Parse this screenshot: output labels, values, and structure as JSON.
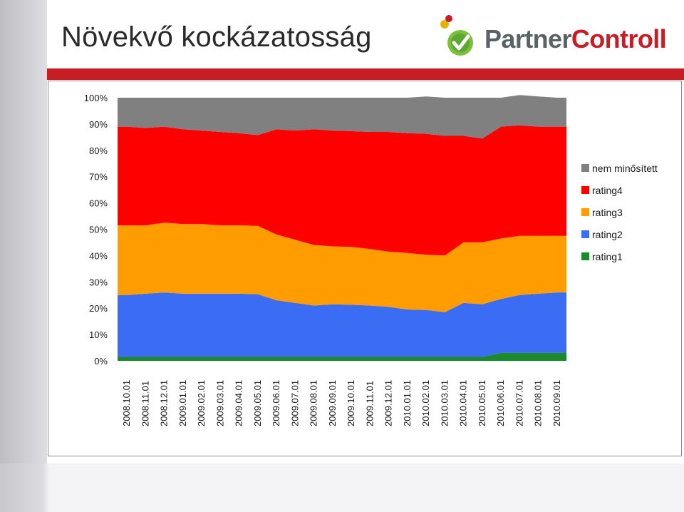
{
  "slide": {
    "title": "Növekvő kockázatosság",
    "logo": {
      "part1": "Partner",
      "part2": "Controll"
    }
  },
  "chart_data": {
    "type": "area",
    "stacked": true,
    "percent_scale": true,
    "ylim": [
      0,
      100
    ],
    "y_ticks": [
      "0%",
      "10%",
      "20%",
      "30%",
      "40%",
      "50%",
      "60%",
      "70%",
      "80%",
      "90%",
      "100%"
    ],
    "categories": [
      "2008.10.01",
      "2008.11.01",
      "2008.12.01",
      "2009.01.01",
      "2009.02.01",
      "2009.03.01",
      "2009.04.01",
      "2009.05.01",
      "2009.06.01",
      "2009.07.01",
      "2009.08.01",
      "2009.09.01",
      "2009.10.01",
      "2009.11.01",
      "2009.12.01",
      "2010.01.01",
      "2010.02.01",
      "2010.03.01",
      "2010.04.01",
      "2010.05.01",
      "2010.06.01",
      "2010.07.01",
      "2010.08.01",
      "2010.09.01"
    ],
    "legend_position": "right",
    "grid": false,
    "series": [
      {
        "name": "rating1",
        "color": "#1a8a2a",
        "values": [
          1.5,
          1.5,
          1.5,
          1.5,
          1.5,
          1.5,
          1.5,
          1.5,
          1.5,
          1.5,
          1.5,
          1.5,
          1.5,
          1.5,
          1.5,
          1.5,
          1.5,
          1.5,
          1.5,
          1.5,
          3.0,
          3.0,
          3.0,
          3.0
        ]
      },
      {
        "name": "rating2",
        "color": "#3a6cf4",
        "values": [
          23.5,
          24.0,
          24.5,
          24.0,
          24.0,
          24.0,
          24.0,
          23.8,
          21.5,
          20.5,
          19.5,
          20.0,
          19.8,
          19.5,
          19.0,
          18.0,
          17.8,
          17.0,
          20.5,
          20.0,
          20.5,
          22.0,
          22.5,
          23.0
        ]
      },
      {
        "name": "rating3",
        "color": "#ff9c00",
        "values": [
          26.5,
          26.0,
          26.5,
          26.5,
          26.5,
          26.0,
          26.0,
          26.0,
          25.0,
          24.0,
          23.0,
          22.0,
          22.0,
          21.5,
          21.0,
          21.5,
          21.0,
          21.5,
          23.0,
          23.5,
          23.0,
          22.5,
          22.0,
          21.5
        ]
      },
      {
        "name": "rating4",
        "color": "#ff0000",
        "values": [
          37.5,
          37.0,
          36.5,
          36.0,
          35.5,
          35.5,
          35.0,
          34.5,
          40.0,
          41.5,
          44.0,
          44.0,
          44.0,
          44.5,
          45.5,
          45.5,
          46.0,
          45.5,
          40.5,
          39.5,
          42.5,
          42.0,
          41.5,
          41.5
        ]
      },
      {
        "name": "nem minősített",
        "color": "#808080",
        "values": [
          11.0,
          11.5,
          11.0,
          12.0,
          12.5,
          13.0,
          13.5,
          14.2,
          12.0,
          12.5,
          12.0,
          12.5,
          12.7,
          13.0,
          13.0,
          13.5,
          14.2,
          14.5,
          14.5,
          15.5,
          11.0,
          11.5,
          11.5,
          11.0
        ]
      }
    ]
  }
}
